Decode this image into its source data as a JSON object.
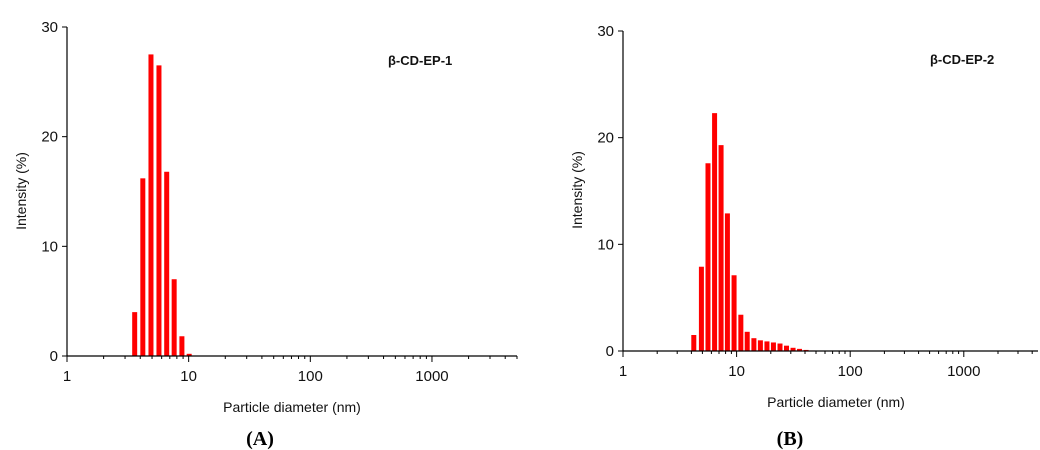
{
  "chart_data": [
    {
      "type": "bar",
      "panel": "A",
      "caption": "(A)",
      "title": "β-CD-EP-1",
      "xlabel": "Particle diameter (nm)",
      "ylabel": "Intensity (%)",
      "x_scale": "log",
      "xlim": [
        1,
        5000
      ],
      "ylim": [
        0,
        30
      ],
      "x_ticks": [
        1,
        10,
        100,
        1000
      ],
      "x_tick_labels": [
        "1",
        "10",
        "100",
        "1000"
      ],
      "y_ticks": [
        0,
        10,
        20,
        30
      ],
      "y_tick_labels": [
        "0",
        "10",
        "20",
        "30"
      ],
      "x": [
        3.6,
        4.2,
        4.9,
        5.7,
        6.6,
        7.6,
        8.8,
        10.1
      ],
      "values": [
        4.0,
        16.2,
        27.5,
        26.5,
        16.8,
        7.0,
        1.8,
        0.2
      ]
    },
    {
      "type": "bar",
      "panel": "B",
      "caption": "(B)",
      "title": "β-CD-EP-2",
      "xlabel": "Particle diameter (nm)",
      "ylabel": "Intensity (%)",
      "x_scale": "log",
      "xlim": [
        1,
        4500
      ],
      "ylim": [
        0,
        30
      ],
      "x_ticks": [
        1,
        10,
        100,
        1000
      ],
      "x_tick_labels": [
        "1",
        "10",
        "100",
        "1000"
      ],
      "y_ticks": [
        0,
        10,
        20,
        30
      ],
      "y_tick_labels": [
        "0",
        "10",
        "20",
        "30"
      ],
      "x": [
        4.2,
        4.9,
        5.6,
        6.4,
        7.3,
        8.3,
        9.5,
        10.9,
        12.4,
        14.2,
        16.2,
        18.5,
        21.1,
        24.1,
        27.5,
        31.4,
        35.8,
        40.9,
        46.7,
        53.3
      ],
      "values": [
        1.5,
        7.9,
        17.6,
        22.3,
        19.3,
        12.9,
        7.1,
        3.4,
        1.8,
        1.2,
        1.0,
        0.9,
        0.8,
        0.7,
        0.5,
        0.3,
        0.2,
        0.1,
        0.05,
        0.02
      ]
    }
  ]
}
